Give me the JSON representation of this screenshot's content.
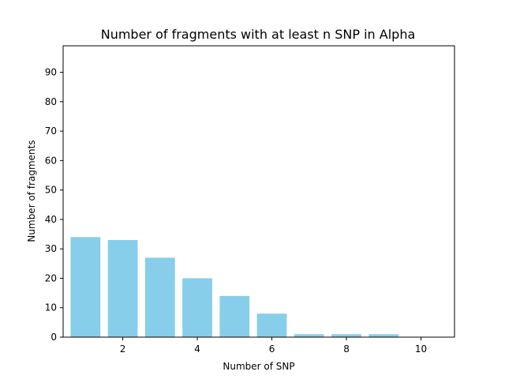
{
  "chart_data": {
    "type": "bar",
    "title": "Number of fragments with at least n SNP in Alpha",
    "xlabel": "Number of SNP",
    "ylabel": "Number of fragments",
    "x": [
      1,
      2,
      3,
      4,
      5,
      6,
      7,
      8,
      9,
      10
    ],
    "values": [
      34,
      33,
      27,
      20,
      14,
      8,
      1,
      1,
      1,
      0
    ],
    "xlim": [
      0.4,
      10.9
    ],
    "ylim": [
      0,
      99
    ],
    "xticks": [
      2,
      4,
      6,
      8,
      10
    ],
    "yticks": [
      0,
      10,
      20,
      30,
      40,
      50,
      60,
      70,
      80,
      90
    ],
    "bar_color": "#87CEEB",
    "grid": false
  }
}
